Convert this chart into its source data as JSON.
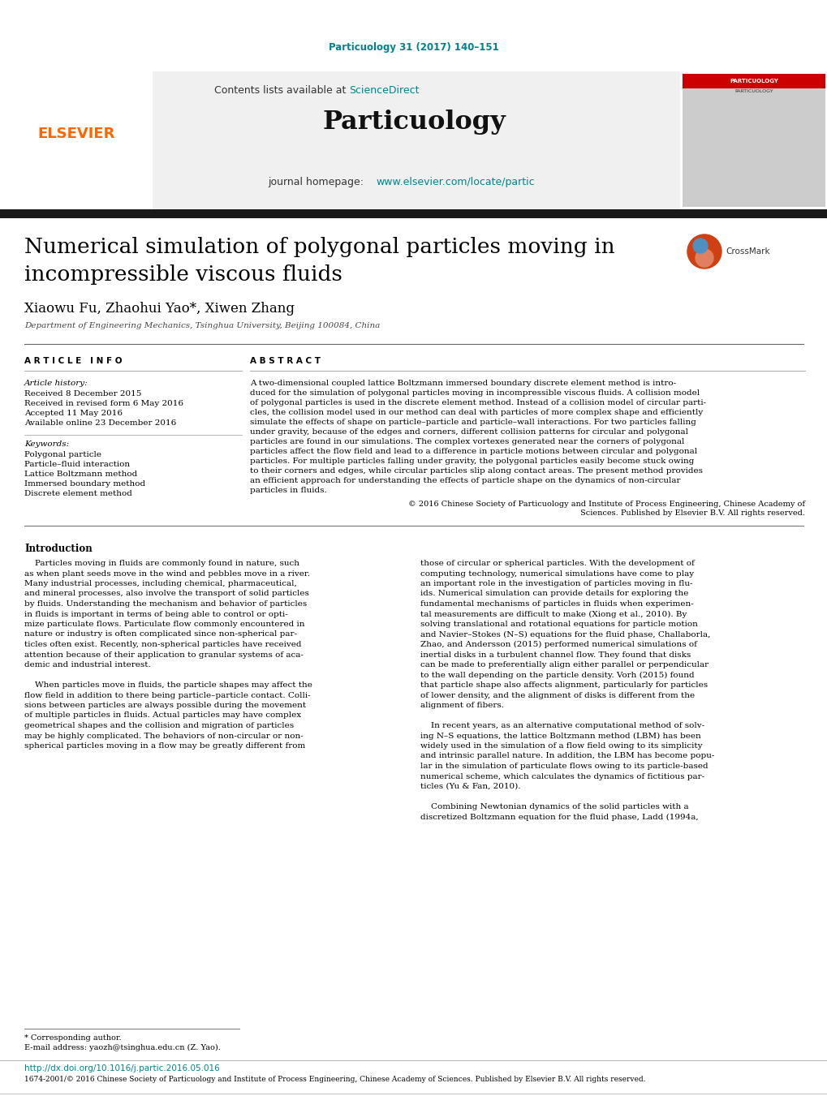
{
  "doi_text": "Particuology 31 (2017) 140–151",
  "doi_color": "#00838F",
  "journal_name": "Particuology",
  "contents_text": "Contents lists available at ",
  "sciencedirect_text": "ScienceDirect",
  "sciencedirect_color": "#00838F",
  "journal_homepage_text": "journal homepage: ",
  "journal_url": "www.elsevier.com/locate/partic",
  "journal_url_color": "#00838F",
  "paper_title_line1": "Numerical simulation of polygonal particles moving in",
  "paper_title_line2": "incompressible viscous fluids",
  "authors": "Xiaowu Fu, Zhaohui Yao*, Xiwen Zhang",
  "affiliation": "Department of Engineering Mechanics, Tsinghua University, Beijing 100084, China",
  "article_info_header": "A R T I C L E   I N F O",
  "abstract_header": "A B S T R A C T",
  "article_history_label": "Article history:",
  "received_1": "Received 8 December 2015",
  "received_2": "Received in revised form 6 May 2016",
  "accepted": "Accepted 11 May 2016",
  "available": "Available online 23 December 2016",
  "keywords_label": "Keywords:",
  "keyword1": "Polygonal particle",
  "keyword2": "Particle–fluid interaction",
  "keyword3": "Lattice Boltzmann method",
  "keyword4": "Immersed boundary method",
  "keyword5": "Discrete element method",
  "abstract_lines": [
    "A two-dimensional coupled lattice Boltzmann immersed boundary discrete element method is intro-",
    "duced for the simulation of polygonal particles moving in incompressible viscous fluids. A collision model",
    "of polygonal particles is used in the discrete element method. Instead of a collision model of circular parti-",
    "cles, the collision model used in our method can deal with particles of more complex shape and efficiently",
    "simulate the effects of shape on particle–particle and particle–wall interactions. For two particles falling",
    "under gravity, because of the edges and corners, different collision patterns for circular and polygonal",
    "particles are found in our simulations. The complex vortexes generated near the corners of polygonal",
    "particles affect the flow field and lead to a difference in particle motions between circular and polygonal",
    "particles. For multiple particles falling under gravity, the polygonal particles easily become stuck owing",
    "to their corners and edges, while circular particles slip along contact areas. The present method provides",
    "an efficient approach for understanding the effects of particle shape on the dynamics of non-circular",
    "particles in fluids."
  ],
  "copyright_line1": "© 2016 Chinese Society of Particuology and Institute of Process Engineering, Chinese Academy of",
  "copyright_line2": "Sciences. Published by Elsevier B.V. All rights reserved.",
  "intro_header": "Introduction",
  "left_intro_lines": [
    "    Particles moving in fluids are commonly found in nature, such",
    "as when plant seeds move in the wind and pebbles move in a river.",
    "Many industrial processes, including chemical, pharmaceutical,",
    "and mineral processes, also involve the transport of solid particles",
    "by fluids. Understanding the mechanism and behavior of particles",
    "in fluids is important in terms of being able to control or opti-",
    "mize particulate flows. Particulate flow commonly encountered in",
    "nature or industry is often complicated since non-spherical par-",
    "ticles often exist. Recently, non-spherical particles have received",
    "attention because of their application to granular systems of aca-",
    "demic and industrial interest.",
    "",
    "    When particles move in fluids, the particle shapes may affect the",
    "flow field in addition to there being particle–particle contact. Colli-",
    "sions between particles are always possible during the movement",
    "of multiple particles in fluids. Actual particles may have complex",
    "geometrical shapes and the collision and migration of particles",
    "may be highly complicated. The behaviors of non-circular or non-",
    "spherical particles moving in a flow may be greatly different from"
  ],
  "right_intro_lines": [
    "those of circular or spherical particles. With the development of",
    "computing technology, numerical simulations have come to play",
    "an important role in the investigation of particles moving in flu-",
    "ids. Numerical simulation can provide details for exploring the",
    "fundamental mechanisms of particles in fluids when experimen-",
    "tal measurements are difficult to make (Xiong et al., 2010). By",
    "solving translational and rotational equations for particle motion",
    "and Navier–Stokes (N–S) equations for the fluid phase, Challaborla,",
    "Zhao, and Andersson (2015) performed numerical simulations of",
    "inertial disks in a turbulent channel flow. They found that disks",
    "can be made to preferentially align either parallel or perpendicular",
    "to the wall depending on the particle density. Vorh (2015) found",
    "that particle shape also affects alignment, particularly for particles",
    "of lower density, and the alignment of disks is different from the",
    "alignment of fibers.",
    "",
    "    In recent years, as an alternative computational method of solv-",
    "ing N–S equations, the lattice Boltzmann method (LBM) has been",
    "widely used in the simulation of a flow field owing to its simplicity",
    "and intrinsic parallel nature. In addition, the LBM has become popu-",
    "lar in the simulation of particulate flows owing to its particle-based",
    "numerical scheme, which calculates the dynamics of fictitious par-",
    "ticles (Yu & Fan, 2010).",
    "",
    "    Combining Newtonian dynamics of the solid particles with a",
    "discretized Boltzmann equation for the fluid phase, Ladd (1994a,"
  ],
  "footer_line1": "* Corresponding author.",
  "footer_line2": "E-mail address: yaozh@tsinghua.edu.cn (Z. Yao).",
  "footer_doi": "http://dx.doi.org/10.1016/j.partic.2016.05.016",
  "footer_doi_color": "#00838F",
  "footer_rights": "1674-2001/© 2016 Chinese Society of Particuology and Institute of Process Engineering, Chinese Academy of Sciences. Published by Elsevier B.V. All rights reserved.",
  "header_bar_color": "#1a1a1a",
  "bg_gray": "#f0f0f0",
  "elsevier_color": "#FF6600",
  "text_color": "#000000",
  "link_blue": "#00838F"
}
